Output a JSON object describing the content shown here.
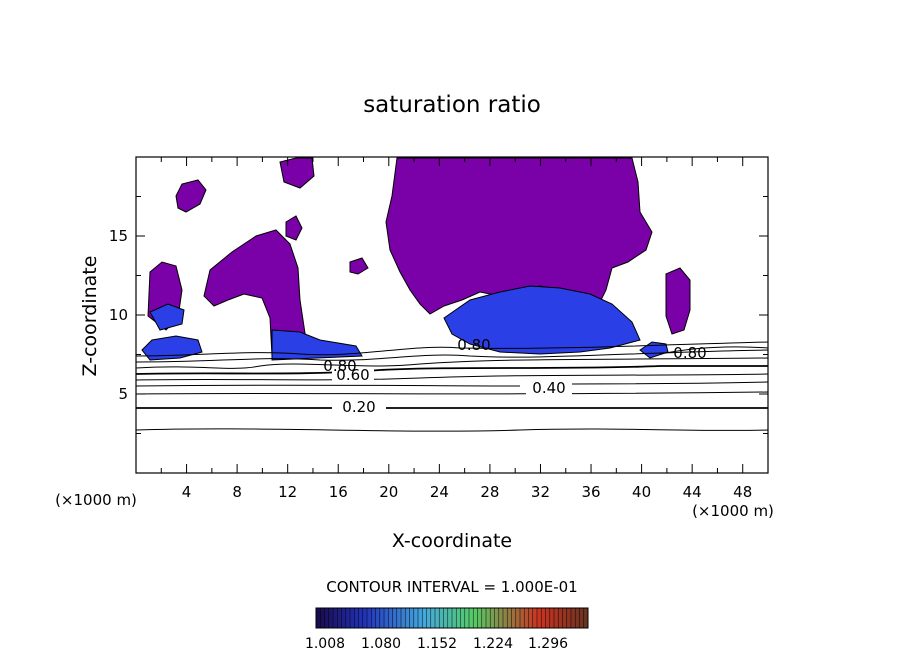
{
  "chart_data": {
    "type": "heatmap",
    "title": "saturation ratio",
    "xlabel": "X-coordinate",
    "ylabel": "Z-coordinate",
    "x_unit_left": "(×1000 m)",
    "x_unit_right": "(×1000 m)",
    "xlim": [
      0,
      50
    ],
    "ylim": [
      0,
      20
    ],
    "x_ticks": [
      4,
      8,
      12,
      16,
      20,
      24,
      28,
      32,
      36,
      40,
      44,
      48
    ],
    "y_ticks": [
      5,
      10,
      15
    ],
    "grid": false,
    "contour_interval_text": "CONTOUR INTERVAL = 1.000E-01",
    "contour_labels": [
      {
        "text": "0.20",
        "x": 17.5,
        "y": 4.2
      },
      {
        "text": "0.40",
        "x": 32.5,
        "y": 5.4
      },
      {
        "text": "0.60",
        "x": 17.2,
        "y": 6.2
      },
      {
        "text": "0.80",
        "x": 16.8,
        "y": 6.8
      },
      {
        "text": "0.80",
        "x": 26.5,
        "y": 8.3
      },
      {
        "text": "0.80",
        "x": 43.2,
        "y": 7.7
      }
    ],
    "colorbar": {
      "colors": [
        "#1a0a4a",
        "#2233bb",
        "#44aadd",
        "#55cc66",
        "#cc3322",
        "#663322"
      ],
      "tick_labels": [
        "1.008",
        "1.080",
        "1.152",
        "1.224",
        "1.296"
      ]
    },
    "colors": {
      "saturated_fill": "#7a00a8",
      "blue_fill": "#2a3fe6",
      "contour_line": "#000000"
    }
  }
}
